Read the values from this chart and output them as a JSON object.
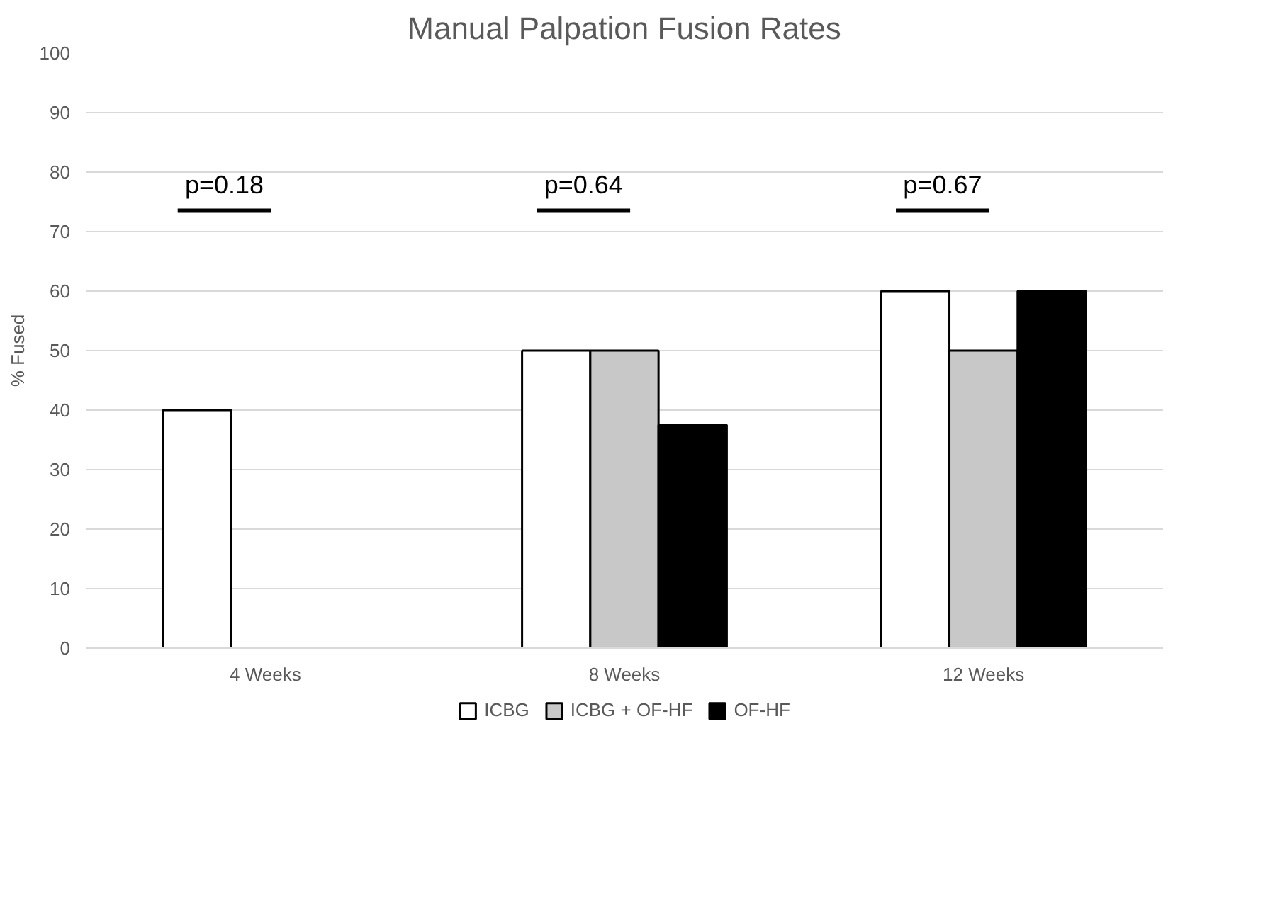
{
  "chart_data": {
    "type": "bar",
    "title": "Manual Palpation Fusion Rates",
    "ylabel": "% Fused",
    "categories": [
      "4 Weeks",
      "8 Weeks",
      "12 Weeks"
    ],
    "series": [
      {
        "name": "ICBG",
        "color": "#ffffff",
        "values": [
          40,
          50,
          60
        ]
      },
      {
        "name": "ICBG + OF-HF",
        "color": "#c8c8c8",
        "values": [
          null,
          50,
          50
        ]
      },
      {
        "name": "OF-HF",
        "color": "#000000",
        "values": [
          null,
          37.5,
          60
        ]
      }
    ],
    "ylim": [
      0,
      100
    ],
    "yticks": [
      0,
      10,
      20,
      30,
      40,
      50,
      60,
      70,
      80,
      90,
      100
    ],
    "grid": "y",
    "legend": "bottom",
    "annotations": [
      "p=0.18",
      "p=0.64",
      "p=0.67"
    ]
  }
}
